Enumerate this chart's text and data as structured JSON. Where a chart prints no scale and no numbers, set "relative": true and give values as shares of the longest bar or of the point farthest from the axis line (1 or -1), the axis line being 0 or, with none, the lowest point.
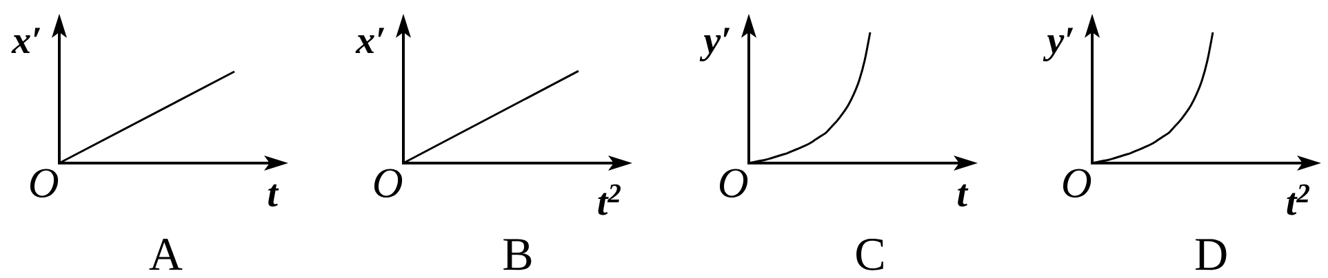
{
  "chart_data": [
    {
      "type": "line",
      "title": "A",
      "xlabel": "t",
      "ylabel": "x′",
      "annotations": [
        "O"
      ],
      "relative": true,
      "categories": [
        null,
        null
      ],
      "values": [
        0,
        1
      ],
      "color": "#000000"
    },
    {
      "type": "line",
      "title": "B",
      "xlabel": "t$^{2}$",
      "ylabel": "x′",
      "annotations": [
        "O"
      ],
      "relative": true,
      "categories": [
        null,
        null
      ],
      "values": [
        0,
        1
      ],
      "color": "#000000"
    },
    {
      "type": "line",
      "title": "C",
      "xlabel": "t",
      "ylabel": "y′",
      "annotations": [
        "O"
      ],
      "relative": true,
      "categories": [
        null,
        null,
        null,
        null,
        null,
        null,
        null,
        null,
        null,
        null,
        null,
        null,
        null,
        null,
        null,
        null,
        null,
        null,
        null,
        null,
        null,
        null,
        null
      ],
      "values": [
        0,
        0.008,
        0.017,
        0.025,
        0.037,
        0.05,
        0.063,
        0.076,
        0.094,
        0.111,
        0.129,
        0.15,
        0.177,
        0.205,
        0.232,
        0.278,
        0.323,
        0.378,
        0.441,
        0.524,
        0.63,
        0.783,
        1
      ],
      "color": "#000000"
    },
    {
      "type": "line",
      "title": "D",
      "xlabel": "t$^{2}$",
      "ylabel": "y′",
      "annotations": [
        "O"
      ],
      "relative": true,
      "categories": [
        null,
        null,
        null,
        null,
        null,
        null,
        null,
        null,
        null,
        null,
        null,
        null,
        null,
        null,
        null,
        null,
        null,
        null,
        null,
        null,
        null,
        null,
        null
      ],
      "values": [
        0,
        0.008,
        0.017,
        0.025,
        0.037,
        0.05,
        0.063,
        0.076,
        0.094,
        0.111,
        0.129,
        0.15,
        0.177,
        0.205,
        0.232,
        0.278,
        0.323,
        0.378,
        0.441,
        0.524,
        0.63,
        0.783,
        1
      ],
      "color": "#000000"
    }
  ]
}
